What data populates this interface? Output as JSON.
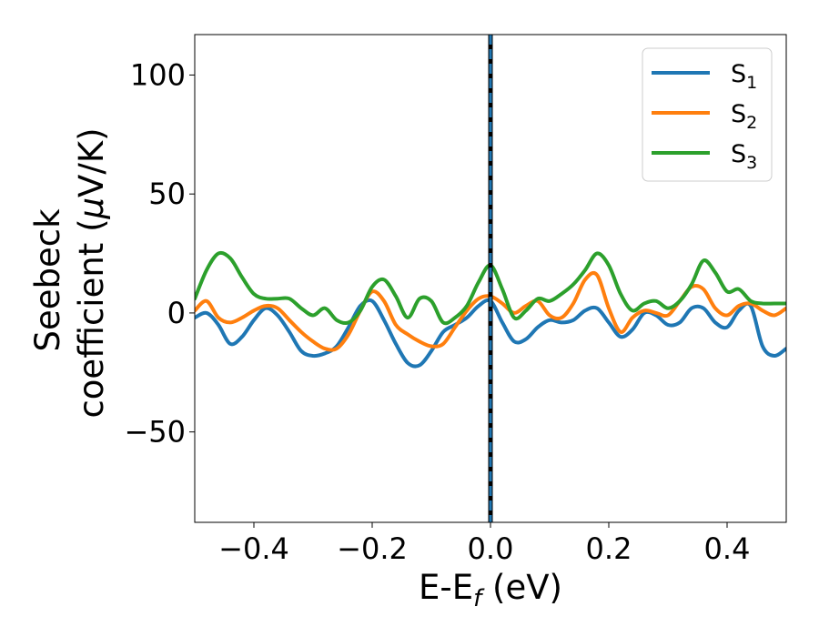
{
  "chart_data": {
    "type": "line",
    "title": "",
    "xlabel": "E-E",
    "xlabel_subscript": "f",
    "xlabel_unit": " (eV)",
    "ylabel_line1": "Seebeck",
    "ylabel_line2": "coefficient  (",
    "ylabel_mu": "μ",
    "ylabel_unit": "V/K)",
    "xlim": [
      -0.5,
      0.5
    ],
    "ylim": [
      -88,
      117
    ],
    "xticks": [
      -0.4,
      -0.2,
      0.0,
      0.2,
      0.4
    ],
    "xtick_labels": [
      "−0.4",
      "−0.2",
      "0.0",
      "0.2",
      "0.4"
    ],
    "yticks": [
      -50,
      0,
      50,
      100
    ],
    "ytick_labels": [
      "−50",
      "0",
      "50",
      "100"
    ],
    "grid": false,
    "legend_position": "top-right",
    "vertical_line": {
      "x": 0.0,
      "colors": [
        "#000000",
        "#1f77b4"
      ],
      "style": "dashed"
    },
    "x": [
      -0.5,
      -0.48,
      -0.46,
      -0.44,
      -0.42,
      -0.4,
      -0.38,
      -0.36,
      -0.34,
      -0.32,
      -0.3,
      -0.28,
      -0.26,
      -0.24,
      -0.22,
      -0.2,
      -0.18,
      -0.16,
      -0.14,
      -0.12,
      -0.1,
      -0.08,
      -0.06,
      -0.04,
      -0.02,
      0.0,
      0.02,
      0.04,
      0.06,
      0.08,
      0.1,
      0.12,
      0.14,
      0.16,
      0.18,
      0.2,
      0.22,
      0.24,
      0.26,
      0.28,
      0.3,
      0.32,
      0.34,
      0.36,
      0.38,
      0.4,
      0.42,
      0.44,
      0.46,
      0.48,
      0.5
    ],
    "series": [
      {
        "name": "S",
        "subscript": "1",
        "color": "#1f77b4",
        "values": [
          -2,
          0,
          -5,
          -13,
          -10,
          -3,
          2,
          -1,
          -8,
          -16,
          -18,
          -17,
          -14,
          -6,
          3,
          5,
          -3,
          -13,
          -21,
          -22,
          -16,
          -8,
          -5,
          -2,
          3,
          5,
          -4,
          -12,
          -11,
          -6,
          -3,
          -4,
          -3,
          1,
          2,
          -4,
          -10,
          -7,
          0,
          -1,
          -5,
          -4,
          2,
          2,
          -4,
          -6,
          1,
          3,
          -14,
          -18,
          -15
        ]
      },
      {
        "name": "S",
        "subscript": "2",
        "color": "#ff7f0e",
        "values": [
          1,
          5,
          -2,
          -4,
          -2,
          1,
          3,
          2,
          -3,
          -8,
          -12,
          -15,
          -15,
          -9,
          1,
          9,
          5,
          -5,
          -9,
          -12,
          -14,
          -13,
          -6,
          1,
          6,
          7,
          4,
          0,
          3,
          5,
          -1,
          -2,
          4,
          14,
          16,
          2,
          -8,
          -2,
          1,
          0,
          -1,
          5,
          11,
          10,
          2,
          -1,
          3,
          4,
          1,
          -1,
          2
        ]
      },
      {
        "name": "S",
        "subscript": "3",
        "color": "#2ca02c",
        "values": [
          6,
          18,
          25,
          23,
          15,
          8,
          6,
          6,
          6,
          2,
          -1,
          2,
          -3,
          -4,
          1,
          11,
          14,
          7,
          -2,
          6,
          5,
          -4,
          -2,
          3,
          13,
          20,
          10,
          -2,
          1,
          6,
          5,
          8,
          12,
          18,
          25,
          20,
          8,
          1,
          4,
          5,
          2,
          5,
          12,
          22,
          17,
          9,
          10,
          5,
          4,
          4,
          4
        ]
      }
    ]
  }
}
